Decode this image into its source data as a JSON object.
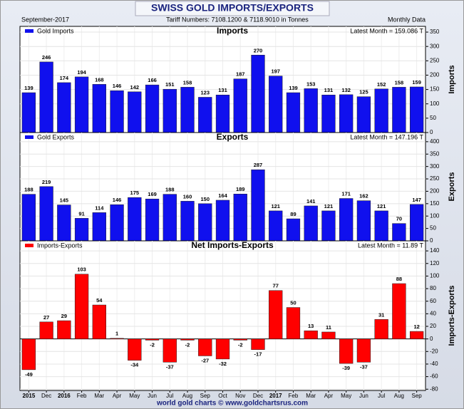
{
  "title": "SWISS GOLD IMPORTS/EXPORTS",
  "header": {
    "left": "September-2017",
    "center": "Tariff Numbers: 7108.1200 & 7118.9010 in Tonnes",
    "right": "Monthly Data"
  },
  "footer": "world gold charts © www.goldchartsrus.com",
  "chart_data": [
    {
      "type": "bar",
      "title": "Imports",
      "y_label": "Imports",
      "annotation": "Latest Month = 159.086 T",
      "series": [
        {
          "name": "Gold Imports",
          "color": "#1010ee",
          "values": [
            139,
            246,
            174,
            194,
            168,
            146,
            142,
            166,
            151,
            158,
            123,
            131,
            187,
            270,
            197,
            139,
            153,
            131,
            132,
            125,
            152,
            158,
            159
          ]
        }
      ],
      "ylim": [
        0,
        370
      ],
      "yticks": [
        0,
        50,
        100,
        150,
        200,
        250,
        300,
        350
      ],
      "grid": true,
      "legend": "upper left"
    },
    {
      "type": "bar",
      "title": "Exports",
      "y_label": "Exports",
      "annotation": "Latest Month = 147.196 T",
      "series": [
        {
          "name": "Gold Exports",
          "color": "#1010ee",
          "values": [
            188,
            219,
            145,
            91,
            114,
            146,
            175,
            169,
            188,
            160,
            150,
            164,
            189,
            287,
            121,
            89,
            141,
            121,
            171,
            162,
            121,
            70,
            147
          ]
        }
      ],
      "ylim": [
        0,
        437
      ],
      "yticks": [
        0,
        50,
        100,
        150,
        200,
        250,
        300,
        350,
        400
      ],
      "grid": true,
      "legend": "upper left"
    },
    {
      "type": "bar",
      "title": "Net Imports-Exports",
      "y_label": "Imports-Exports",
      "annotation": "Latest Month = 11.89 T",
      "categories": [
        "2015",
        "Dec",
        "2016",
        "Feb",
        "Mar",
        "Apr",
        "May",
        "Jun",
        "Jul",
        "Aug",
        "Sep",
        "Oct",
        "Nov",
        "Dec",
        "2017",
        "Feb",
        "Mar",
        "Apr",
        "May",
        "Jun",
        "Jul",
        "Aug",
        "Sep"
      ],
      "series": [
        {
          "name": "Imports-Exports",
          "color": "#ff0000",
          "values": [
            -49,
            27,
            29,
            103,
            54,
            1,
            -34,
            -2,
            -37,
            -2,
            -27,
            -32,
            -2,
            -17,
            77,
            50,
            13,
            11,
            -39,
            -37,
            31,
            88,
            12
          ]
        }
      ],
      "ylim": [
        -82,
        156
      ],
      "yticks": [
        -80,
        -60,
        -40,
        -20,
        0,
        20,
        40,
        60,
        80,
        100,
        120,
        140
      ],
      "grid": true,
      "legend": "upper left"
    }
  ]
}
